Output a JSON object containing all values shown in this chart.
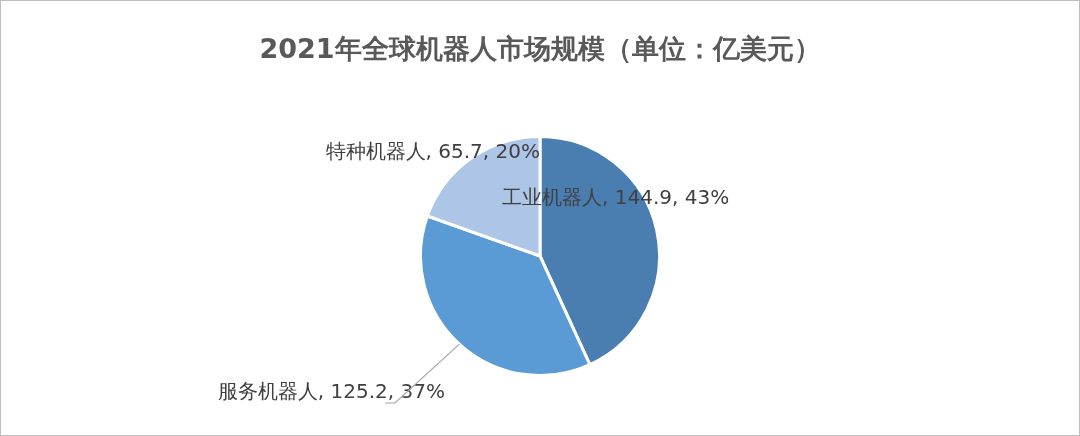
{
  "chart_data": {
    "type": "pie",
    "title": "2021年全球机器人市场规模（单位：亿美元）",
    "categories": [
      "工业机器人",
      "服务机器人",
      "特种机器人"
    ],
    "values": [
      144.9,
      125.2,
      65.7
    ],
    "colors": [
      "#4a7eb0",
      "#5b9bd5",
      "#adc5e7"
    ],
    "value_labels": [
      "144.9, 43%",
      "125.2, 37%",
      "65.7, 20%"
    ],
    "legend": false
  }
}
